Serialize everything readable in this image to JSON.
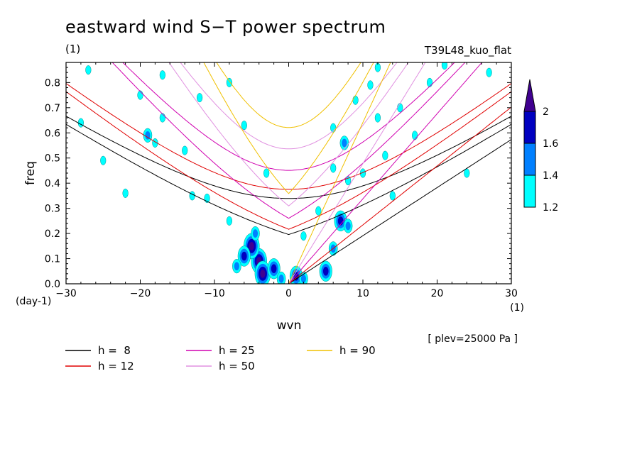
{
  "chart_data": {
    "type": "heatmap",
    "title": "eastward wind S−T power spectrum",
    "subtitle_left": "(1)",
    "subtitle_right": "T39L48_kuo_flat",
    "xlabel": "wvn",
    "ylabel": "freq",
    "x_unit_label": "(1)",
    "y_unit_label": "(day-1)",
    "footnote": "[ plev=25000 Pa ]",
    "xlim": [
      -30,
      30
    ],
    "ylim": [
      0,
      0.88
    ],
    "xticks": [
      -30,
      -20,
      -10,
      0,
      10,
      20,
      30
    ],
    "xtick_labels": [
      "−30",
      "−20",
      "−10",
      "0",
      "10",
      "20",
      "30"
    ],
    "yticks": [
      0,
      0.1,
      0.2,
      0.3,
      0.4,
      0.5,
      0.6,
      0.7,
      0.8
    ],
    "ytick_labels": [
      "0.0",
      "0.1",
      "0.2",
      "0.3",
      "0.4",
      "0.5",
      "0.6",
      "0.7",
      "0.8"
    ],
    "colorbar": {
      "levels": [
        1.2,
        1.4,
        1.6,
        2
      ],
      "level_labels": [
        "1.2",
        "1.4",
        "1.6",
        "2"
      ],
      "colors": [
        "#00ffff",
        "#0080ff",
        "#0000c0",
        "#400090"
      ]
    },
    "dispersion_curves": [
      {
        "name": "h =  8",
        "h": 8,
        "color": "#000000"
      },
      {
        "name": "h = 12",
        "h": 12,
        "color": "#e00000"
      },
      {
        "name": "h = 25",
        "h": 25,
        "color": "#d000b0"
      },
      {
        "name": "h = 50",
        "h": 50,
        "color": "#e090e0"
      },
      {
        "name": "h = 90",
        "h": 90,
        "color": "#f0c000"
      }
    ],
    "curve_families": [
      "kelvin",
      "eig_n0",
      "inertio_gravity_n1"
    ],
    "spectral_blobs": [
      {
        "wvn": -4,
        "freq": 0.09,
        "level": 2
      },
      {
        "wvn": -5,
        "freq": 0.15,
        "level": 2
      },
      {
        "wvn": -3.5,
        "freq": 0.04,
        "level": 2
      },
      {
        "wvn": -6,
        "freq": 0.11,
        "level": 1.6
      },
      {
        "wvn": -2,
        "freq": 0.06,
        "level": 1.6
      },
      {
        "wvn": -4.5,
        "freq": 0.2,
        "level": 1.4
      },
      {
        "wvn": -7,
        "freq": 0.07,
        "level": 1.4
      },
      {
        "wvn": -1,
        "freq": 0.02,
        "level": 1.4
      },
      {
        "wvn": 1,
        "freq": 0.03,
        "level": 1.6
      },
      {
        "wvn": 2,
        "freq": 0.02,
        "level": 1.4
      },
      {
        "wvn": 5,
        "freq": 0.05,
        "level": 1.6
      },
      {
        "wvn": 6,
        "freq": 0.14,
        "level": 1.4
      },
      {
        "wvn": 7,
        "freq": 0.25,
        "level": 1.6
      },
      {
        "wvn": 8,
        "freq": 0.23,
        "level": 1.4
      },
      {
        "wvn": 7.5,
        "freq": 0.56,
        "level": 1.4
      },
      {
        "wvn": 4,
        "freq": 0.29,
        "level": 1.2
      },
      {
        "wvn": -19,
        "freq": 0.59,
        "level": 1.4
      },
      {
        "wvn": -17,
        "freq": 0.66,
        "level": 1.2
      },
      {
        "wvn": -18,
        "freq": 0.56,
        "level": 1.2
      },
      {
        "wvn": -13,
        "freq": 0.35,
        "level": 1.2
      },
      {
        "wvn": -11,
        "freq": 0.34,
        "level": 1.2
      },
      {
        "wvn": -14,
        "freq": 0.53,
        "level": 1.2
      },
      {
        "wvn": -12,
        "freq": 0.74,
        "level": 1.2
      },
      {
        "wvn": -17,
        "freq": 0.83,
        "level": 1.2
      },
      {
        "wvn": -28,
        "freq": 0.64,
        "level": 1.2
      },
      {
        "wvn": -25,
        "freq": 0.49,
        "level": 1.2
      },
      {
        "wvn": -22,
        "freq": 0.36,
        "level": 1.2
      },
      {
        "wvn": -27,
        "freq": 0.85,
        "level": 1.2
      },
      {
        "wvn": -20,
        "freq": 0.75,
        "level": 1.2
      },
      {
        "wvn": -8,
        "freq": 0.8,
        "level": 1.2
      },
      {
        "wvn": -6,
        "freq": 0.63,
        "level": 1.2
      },
      {
        "wvn": -3,
        "freq": 0.44,
        "level": 1.2
      },
      {
        "wvn": -8,
        "freq": 0.25,
        "level": 1.2
      },
      {
        "wvn": 6,
        "freq": 0.62,
        "level": 1.2
      },
      {
        "wvn": 9,
        "freq": 0.73,
        "level": 1.2
      },
      {
        "wvn": 11,
        "freq": 0.79,
        "level": 1.2
      },
      {
        "wvn": 12,
        "freq": 0.66,
        "level": 1.2
      },
      {
        "wvn": 13,
        "freq": 0.51,
        "level": 1.2
      },
      {
        "wvn": 10,
        "freq": 0.44,
        "level": 1.2
      },
      {
        "wvn": 15,
        "freq": 0.7,
        "level": 1.2
      },
      {
        "wvn": 17,
        "freq": 0.59,
        "level": 1.2
      },
      {
        "wvn": 19,
        "freq": 0.8,
        "level": 1.2
      },
      {
        "wvn": 21,
        "freq": 0.87,
        "level": 1.2
      },
      {
        "wvn": 24,
        "freq": 0.44,
        "level": 1.2
      },
      {
        "wvn": 14,
        "freq": 0.35,
        "level": 1.2
      },
      {
        "wvn": 8,
        "freq": 0.41,
        "level": 1.2
      },
      {
        "wvn": 6,
        "freq": 0.46,
        "level": 1.2
      },
      {
        "wvn": 12,
        "freq": 0.86,
        "level": 1.2
      },
      {
        "wvn": 27,
        "freq": 0.84,
        "level": 1.2
      },
      {
        "wvn": 2,
        "freq": 0.19,
        "level": 1.2
      }
    ]
  }
}
